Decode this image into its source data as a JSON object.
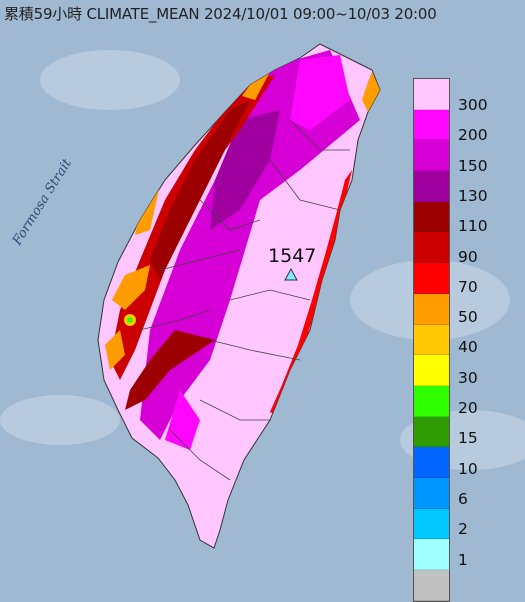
{
  "title": "累積59小時 CLIMATE_MEAN 2024/10/01 09:00~10/03 20:00",
  "strait_label": "Formosa Strait",
  "max_value": "1547",
  "legend": {
    "labels": [
      "300",
      "200",
      "150",
      "130",
      "110",
      "90",
      "70",
      "50",
      "40",
      "30",
      "20",
      "15",
      "10",
      "6",
      "2",
      "1"
    ],
    "colors": [
      "#ffc6ff",
      "#ff06ff",
      "#d600d6",
      "#a000a0",
      "#9c0000",
      "#cc0000",
      "#ff0000",
      "#ff9c00",
      "#ffc800",
      "#ffff00",
      "#30ff00",
      "#2e9c00",
      "#0066ff",
      "#0096ff",
      "#00c8ff",
      "#a0ffff",
      "#c0c0c0"
    ]
  },
  "colors": {
    "sea": "#9fb9d2",
    "land_base": "#ffc6ff",
    "county_border": "#444444"
  }
}
